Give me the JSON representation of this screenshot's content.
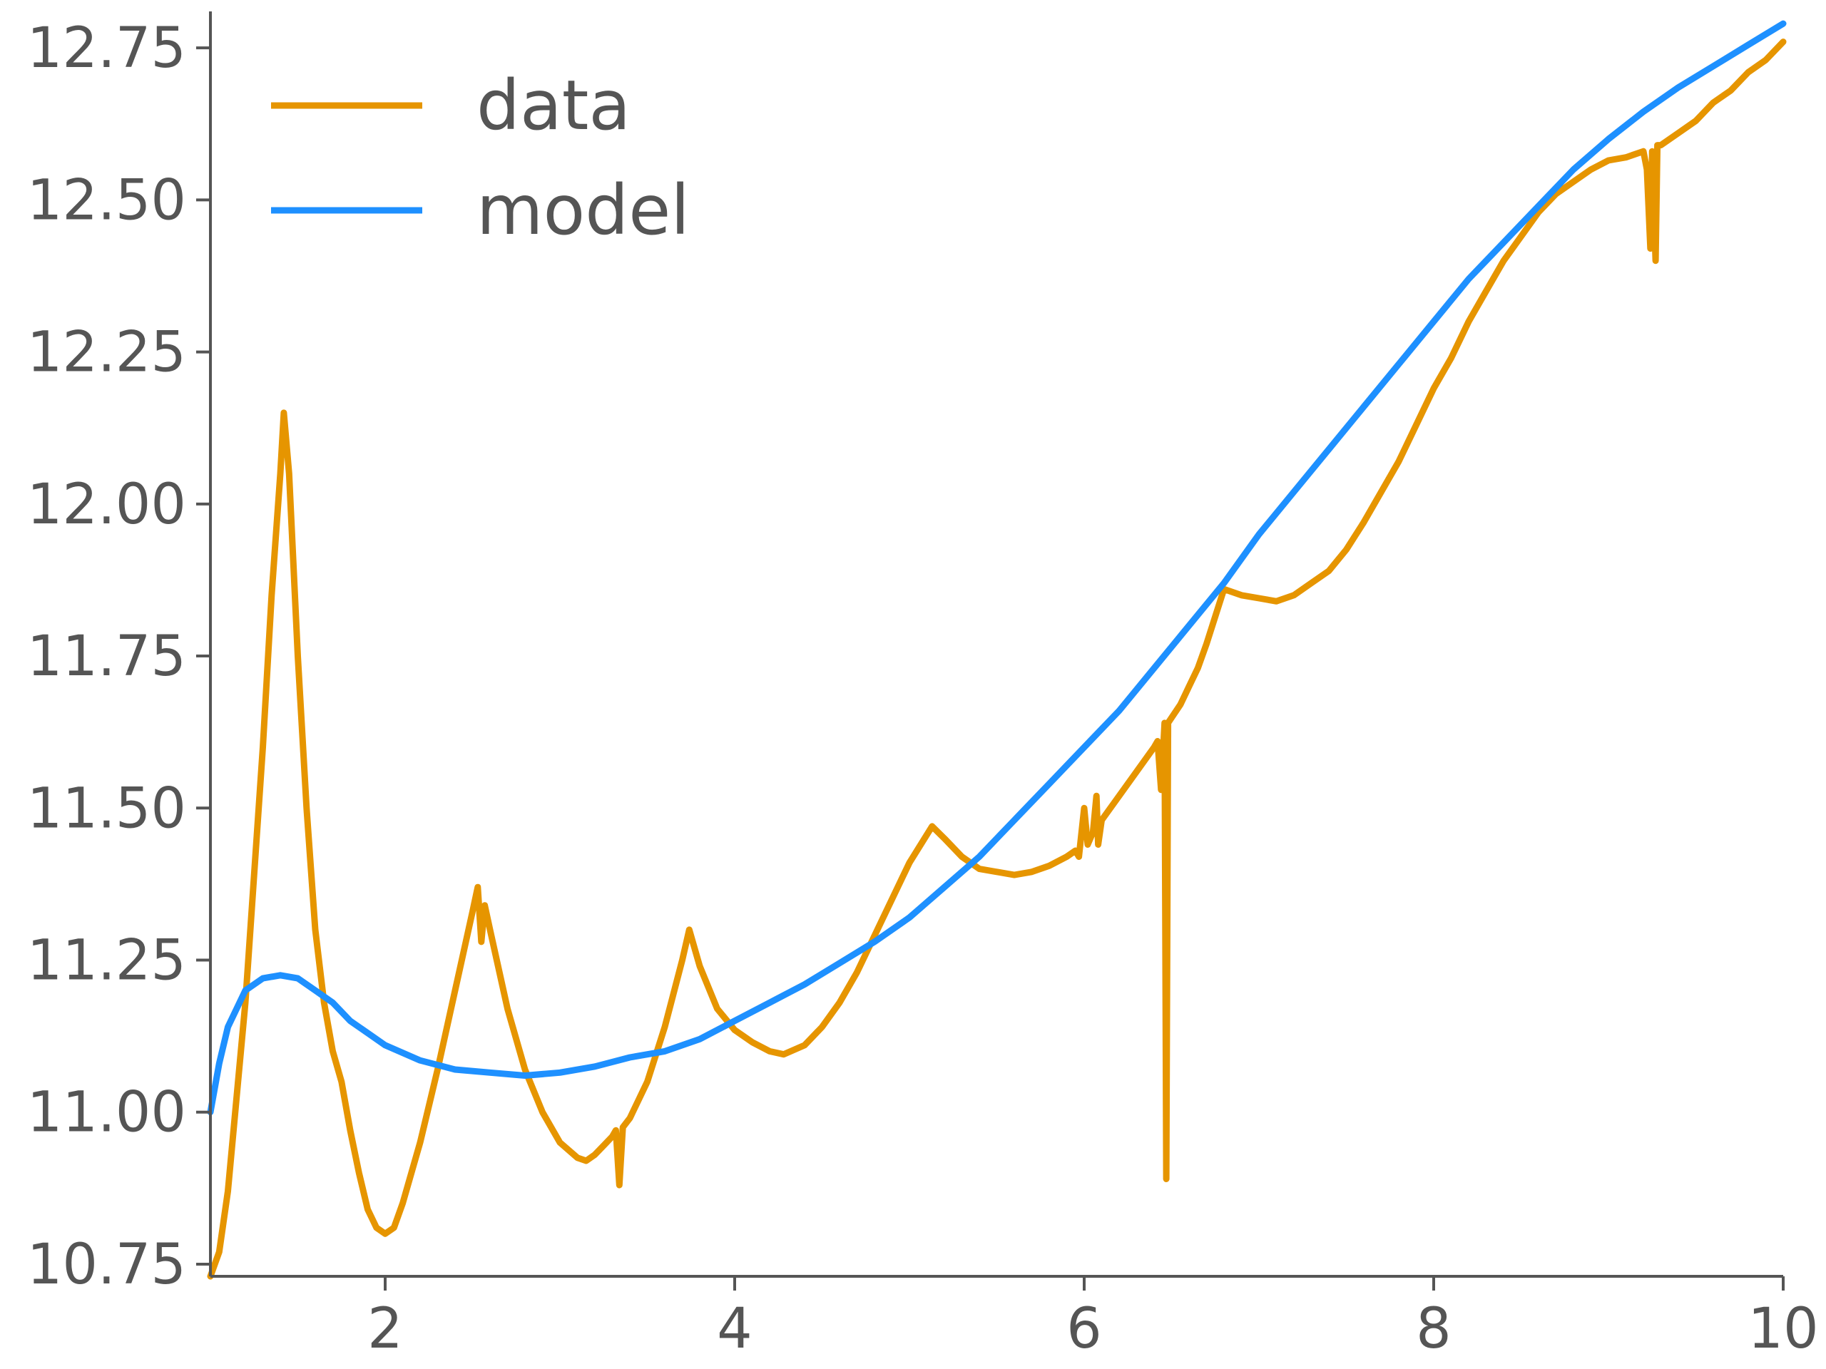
{
  "chart_data": {
    "type": "line",
    "title": "",
    "xlabel": "",
    "ylabel": "",
    "xlim": [
      1,
      10
    ],
    "ylim": [
      10.73,
      12.81
    ],
    "xticks": [
      2,
      4,
      6,
      8,
      10
    ],
    "xtick_labels": [
      "2",
      "4",
      "6",
      "8",
      "10"
    ],
    "yticks": [
      10.75,
      11.0,
      11.25,
      11.5,
      11.75,
      12.0,
      12.25,
      12.5,
      12.75
    ],
    "ytick_labels": [
      "10.75",
      "11.00",
      "11.25",
      "11.50",
      "11.75",
      "12.00",
      "12.25",
      "12.50",
      "12.75"
    ],
    "grid": false,
    "legend_position": "top-left",
    "series": [
      {
        "name": "data",
        "color": "#E69500",
        "points": [
          [
            1.0,
            10.73
          ],
          [
            1.05,
            10.77
          ],
          [
            1.1,
            10.87
          ],
          [
            1.2,
            11.18
          ],
          [
            1.3,
            11.6
          ],
          [
            1.35,
            11.85
          ],
          [
            1.4,
            12.05
          ],
          [
            1.42,
            12.15
          ],
          [
            1.45,
            12.05
          ],
          [
            1.5,
            11.75
          ],
          [
            1.55,
            11.5
          ],
          [
            1.6,
            11.3
          ],
          [
            1.65,
            11.18
          ],
          [
            1.7,
            11.1
          ],
          [
            1.75,
            11.05
          ],
          [
            1.8,
            10.97
          ],
          [
            1.85,
            10.9
          ],
          [
            1.9,
            10.84
          ],
          [
            1.95,
            10.81
          ],
          [
            2.0,
            10.8
          ],
          [
            2.05,
            10.81
          ],
          [
            2.1,
            10.85
          ],
          [
            2.2,
            10.95
          ],
          [
            2.3,
            11.07
          ],
          [
            2.4,
            11.2
          ],
          [
            2.5,
            11.33
          ],
          [
            2.53,
            11.37
          ],
          [
            2.55,
            11.28
          ],
          [
            2.57,
            11.34
          ],
          [
            2.6,
            11.3
          ],
          [
            2.7,
            11.17
          ],
          [
            2.8,
            11.07
          ],
          [
            2.9,
            11.0
          ],
          [
            3.0,
            10.95
          ],
          [
            3.1,
            10.925
          ],
          [
            3.15,
            10.92
          ],
          [
            3.2,
            10.93
          ],
          [
            3.25,
            10.945
          ],
          [
            3.3,
            10.96
          ],
          [
            3.32,
            10.97
          ],
          [
            3.34,
            10.88
          ],
          [
            3.36,
            10.975
          ],
          [
            3.4,
            10.99
          ],
          [
            3.5,
            11.05
          ],
          [
            3.6,
            11.14
          ],
          [
            3.7,
            11.25
          ],
          [
            3.74,
            11.3
          ],
          [
            3.8,
            11.24
          ],
          [
            3.9,
            11.17
          ],
          [
            4.0,
            11.135
          ],
          [
            4.1,
            11.115
          ],
          [
            4.2,
            11.1
          ],
          [
            4.28,
            11.095
          ],
          [
            4.4,
            11.11
          ],
          [
            4.5,
            11.14
          ],
          [
            4.6,
            11.18
          ],
          [
            4.7,
            11.23
          ],
          [
            4.8,
            11.29
          ],
          [
            4.9,
            11.35
          ],
          [
            5.0,
            11.41
          ],
          [
            5.13,
            11.47
          ],
          [
            5.2,
            11.45
          ],
          [
            5.3,
            11.42
          ],
          [
            5.4,
            11.4
          ],
          [
            5.5,
            11.395
          ],
          [
            5.6,
            11.39
          ],
          [
            5.7,
            11.395
          ],
          [
            5.8,
            11.405
          ],
          [
            5.9,
            11.42
          ],
          [
            5.95,
            11.43
          ],
          [
            5.97,
            11.42
          ],
          [
            6.0,
            11.5
          ],
          [
            6.02,
            11.44
          ],
          [
            6.05,
            11.46
          ],
          [
            6.07,
            11.52
          ],
          [
            6.08,
            11.44
          ],
          [
            6.1,
            11.48
          ],
          [
            6.2,
            11.52
          ],
          [
            6.3,
            11.56
          ],
          [
            6.4,
            11.6
          ],
          [
            6.42,
            11.61
          ],
          [
            6.44,
            11.53
          ],
          [
            6.46,
            11.64
          ],
          [
            6.47,
            10.89
          ],
          [
            6.48,
            11.64
          ],
          [
            6.55,
            11.67
          ],
          [
            6.6,
            11.7
          ],
          [
            6.65,
            11.73
          ],
          [
            6.7,
            11.77
          ],
          [
            6.8,
            11.86
          ],
          [
            6.9,
            11.85
          ],
          [
            7.0,
            11.845
          ],
          [
            7.1,
            11.84
          ],
          [
            7.2,
            11.85
          ],
          [
            7.3,
            11.87
          ],
          [
            7.4,
            11.89
          ],
          [
            7.5,
            11.925
          ],
          [
            7.6,
            11.97
          ],
          [
            7.7,
            12.02
          ],
          [
            7.8,
            12.07
          ],
          [
            7.9,
            12.13
          ],
          [
            8.0,
            12.19
          ],
          [
            8.1,
            12.24
          ],
          [
            8.2,
            12.3
          ],
          [
            8.3,
            12.35
          ],
          [
            8.4,
            12.4
          ],
          [
            8.5,
            12.44
          ],
          [
            8.6,
            12.48
          ],
          [
            8.7,
            12.51
          ],
          [
            8.8,
            12.53
          ],
          [
            8.9,
            12.55
          ],
          [
            9.0,
            12.565
          ],
          [
            9.1,
            12.57
          ],
          [
            9.2,
            12.58
          ],
          [
            9.22,
            12.55
          ],
          [
            9.24,
            12.42
          ],
          [
            9.25,
            12.58
          ],
          [
            9.27,
            12.4
          ],
          [
            9.28,
            12.59
          ],
          [
            9.3,
            12.59
          ],
          [
            9.4,
            12.61
          ],
          [
            9.5,
            12.63
          ],
          [
            9.6,
            12.66
          ],
          [
            9.7,
            12.68
          ],
          [
            9.8,
            12.71
          ],
          [
            9.9,
            12.73
          ],
          [
            10.0,
            12.76
          ]
        ]
      },
      {
        "name": "model",
        "color": "#1E90FF",
        "points": [
          [
            1.0,
            11.0
          ],
          [
            1.05,
            11.08
          ],
          [
            1.1,
            11.14
          ],
          [
            1.2,
            11.2
          ],
          [
            1.3,
            11.22
          ],
          [
            1.4,
            11.225
          ],
          [
            1.5,
            11.22
          ],
          [
            1.6,
            11.2
          ],
          [
            1.7,
            11.18
          ],
          [
            1.8,
            11.15
          ],
          [
            1.9,
            11.13
          ],
          [
            2.0,
            11.11
          ],
          [
            2.2,
            11.085
          ],
          [
            2.4,
            11.07
          ],
          [
            2.6,
            11.065
          ],
          [
            2.8,
            11.06
          ],
          [
            3.0,
            11.065
          ],
          [
            3.2,
            11.075
          ],
          [
            3.4,
            11.09
          ],
          [
            3.6,
            11.1
          ],
          [
            3.8,
            11.12
          ],
          [
            4.0,
            11.15
          ],
          [
            4.2,
            11.18
          ],
          [
            4.4,
            11.21
          ],
          [
            4.6,
            11.245
          ],
          [
            4.8,
            11.28
          ],
          [
            5.0,
            11.32
          ],
          [
            5.2,
            11.37
          ],
          [
            5.4,
            11.42
          ],
          [
            5.6,
            11.48
          ],
          [
            5.8,
            11.54
          ],
          [
            6.0,
            11.6
          ],
          [
            6.2,
            11.66
          ],
          [
            6.4,
            11.73
          ],
          [
            6.6,
            11.8
          ],
          [
            6.8,
            11.87
          ],
          [
            7.0,
            11.95
          ],
          [
            7.2,
            12.02
          ],
          [
            7.4,
            12.09
          ],
          [
            7.6,
            12.16
          ],
          [
            7.8,
            12.23
          ],
          [
            8.0,
            12.3
          ],
          [
            8.2,
            12.37
          ],
          [
            8.4,
            12.43
          ],
          [
            8.6,
            12.49
          ],
          [
            8.8,
            12.55
          ],
          [
            9.0,
            12.6
          ],
          [
            9.2,
            12.645
          ],
          [
            9.4,
            12.685
          ],
          [
            9.6,
            12.72
          ],
          [
            9.8,
            12.755
          ],
          [
            10.0,
            12.79
          ]
        ]
      }
    ]
  }
}
